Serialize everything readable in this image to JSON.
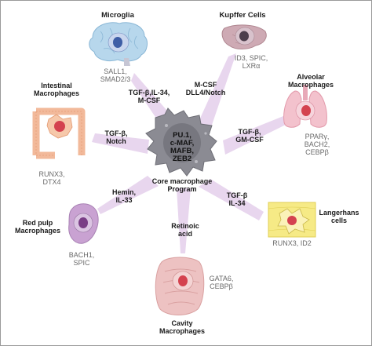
{
  "center": {
    "factors": [
      "PU.1,",
      "c-MAF,",
      "MAFB,",
      "ZEB2"
    ],
    "caption": [
      "Core macrophage",
      "Program"
    ]
  },
  "cells": {
    "microglia": {
      "title": "Microglia",
      "factors": [
        "SALL1,",
        "SMAD2/3"
      ]
    },
    "kupffer": {
      "title": "Kupffer Cells",
      "factors": [
        "ID3, SPIC,",
        "LXRα"
      ]
    },
    "alveolar": {
      "title": [
        "Alveolar",
        "Macrophages"
      ],
      "factors": [
        "PPARγ,",
        "BACH2,",
        "CEBPβ"
      ]
    },
    "langerhans": {
      "title": [
        "Langerhans",
        "cells"
      ],
      "factors": [
        "RUNX3, ID2"
      ]
    },
    "cavity": {
      "title": [
        "Cavity",
        "Macrophages"
      ],
      "factors": [
        "GATA6,",
        "CEBPβ"
      ]
    },
    "redpulp": {
      "title": [
        "Red pulp",
        "Macrophages"
      ],
      "factors": [
        "BACH1,",
        "SPIC"
      ]
    },
    "intestinal": {
      "title": [
        "Intestinal",
        "Macrophages"
      ],
      "factors": [
        "RUNX3,",
        "DTX4"
      ]
    }
  },
  "signals": {
    "microglia": [
      "TGF-β,IL-34,",
      "M-CSF"
    ],
    "kupffer": [
      "M-CSF",
      "DLL4/Notch"
    ],
    "alveolar": [
      "TGF-β,",
      "GM-CSF"
    ],
    "langerhans": [
      "TGF-β",
      "IL-34"
    ],
    "cavity": [
      "Retinoic",
      "acid"
    ],
    "redpulp": [
      "Hemin,",
      "IL-33"
    ],
    "intestinal": [
      "TGF-β,",
      "Notch"
    ]
  },
  "colors": {
    "arrow": "#e6d4ec",
    "core_cell": "#8a8a92",
    "microglia": "#a9cde6",
    "kupffer": "#c9a3ad",
    "alveolar": "#f0b7c4",
    "langerhans": "#f3e46a",
    "cavity": "#e9b0b0",
    "redpulp": "#b890c2",
    "intestinal": "#f0b690",
    "nucleus_red": "#d8474f",
    "nucleus_blue": "#3d5fa8",
    "nucleus_purple": "#7a3d86",
    "nucleus_dark": "#5a4a5a"
  }
}
